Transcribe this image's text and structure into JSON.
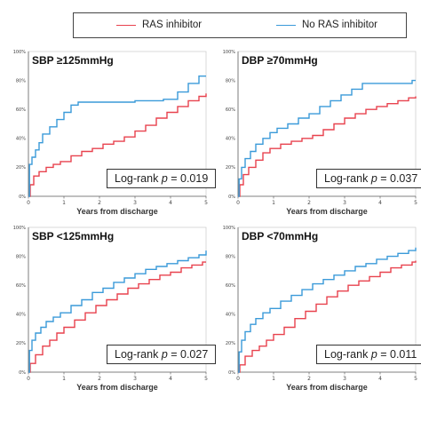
{
  "legend": {
    "items": [
      {
        "label": "RAS inhibitor",
        "color": "#e8424e"
      },
      {
        "label": "No RAS inhibitor",
        "color": "#3a9ad9"
      }
    ]
  },
  "chart_data": [
    {
      "type": "line",
      "title": "SBP ≥125mmHg",
      "xlabel": "Years from discharge",
      "ylabel": "",
      "xlim": [
        0,
        5
      ],
      "ylim": [
        0,
        100
      ],
      "xticks": [
        "0",
        "1",
        "2",
        "3",
        "4",
        "5"
      ],
      "yticks": [
        "0%",
        "20%",
        "40%",
        "60%",
        "80%",
        "100%"
      ],
      "annotation": {
        "prefix": "Log-rank ",
        "italic": "p",
        "suffix": " = 0.019"
      },
      "series": [
        {
          "name": "RAS inhibitor",
          "color": "#e8424e",
          "x": [
            0,
            0.05,
            0.15,
            0.3,
            0.5,
            0.7,
            0.9,
            1.2,
            1.5,
            1.8,
            2.1,
            2.4,
            2.7,
            3.0,
            3.3,
            3.6,
            3.9,
            4.2,
            4.5,
            4.8,
            5.0
          ],
          "y": [
            0,
            8,
            14,
            17,
            20,
            22,
            24,
            28,
            31,
            33,
            36,
            38,
            41,
            45,
            49,
            54,
            58,
            62,
            66,
            69,
            71
          ]
        },
        {
          "name": "No RAS inhibitor",
          "color": "#3a9ad9",
          "x": [
            0,
            0.03,
            0.1,
            0.2,
            0.3,
            0.4,
            0.6,
            0.8,
            1.0,
            1.2,
            1.4,
            2.0,
            3.0,
            3.8,
            4.2,
            4.5,
            4.8,
            5.0
          ],
          "y": [
            0,
            22,
            27,
            32,
            37,
            43,
            48,
            53,
            58,
            63,
            65,
            65,
            66,
            67,
            72,
            78,
            83,
            83
          ]
        }
      ]
    },
    {
      "type": "line",
      "title": "DBP ≥70mmHg",
      "xlabel": "Years from discharge",
      "ylabel": "",
      "xlim": [
        0,
        5
      ],
      "ylim": [
        0,
        100
      ],
      "xticks": [
        "0",
        "1",
        "2",
        "3",
        "4",
        "5"
      ],
      "yticks": [
        "0%",
        "20%",
        "40%",
        "60%",
        "80%",
        "100%"
      ],
      "annotation": {
        "prefix": "Log-rank ",
        "italic": "p",
        "suffix": " = 0.037"
      },
      "series": [
        {
          "name": "RAS inhibitor",
          "color": "#e8424e",
          "x": [
            0,
            0.05,
            0.15,
            0.3,
            0.5,
            0.7,
            0.9,
            1.2,
            1.5,
            1.8,
            2.1,
            2.4,
            2.7,
            3.0,
            3.3,
            3.6,
            3.9,
            4.2,
            4.5,
            4.8,
            5.0
          ],
          "y": [
            0,
            8,
            15,
            20,
            25,
            30,
            33,
            36,
            38,
            40,
            42,
            46,
            50,
            54,
            57,
            60,
            62,
            64,
            66,
            68,
            69
          ]
        },
        {
          "name": "No RAS inhibitor",
          "color": "#3a9ad9",
          "x": [
            0,
            0.03,
            0.1,
            0.2,
            0.35,
            0.5,
            0.7,
            0.9,
            1.1,
            1.4,
            1.7,
            2.0,
            2.3,
            2.6,
            2.9,
            3.2,
            3.5,
            3.9,
            4.3,
            4.7,
            4.9,
            5.0
          ],
          "y": [
            0,
            12,
            20,
            26,
            31,
            36,
            40,
            44,
            47,
            50,
            54,
            57,
            62,
            66,
            70,
            74,
            78,
            78,
            78,
            78,
            80,
            80
          ]
        }
      ]
    },
    {
      "type": "line",
      "title": "SBP <125mmHg",
      "xlabel": "Years from discharge",
      "ylabel": "",
      "xlim": [
        0,
        5
      ],
      "ylim": [
        0,
        100
      ],
      "xticks": [
        "0",
        "1",
        "2",
        "3",
        "4",
        "5"
      ],
      "yticks": [
        "0%",
        "20%",
        "40%",
        "60%",
        "80%",
        "100%"
      ],
      "annotation": {
        "prefix": "Log-rank ",
        "italic": "p",
        "suffix": " = 0.027"
      },
      "series": [
        {
          "name": "RAS inhibitor",
          "color": "#e8424e",
          "x": [
            0,
            0.05,
            0.2,
            0.4,
            0.6,
            0.8,
            1.0,
            1.3,
            1.6,
            1.9,
            2.2,
            2.5,
            2.8,
            3.1,
            3.4,
            3.7,
            4.0,
            4.3,
            4.6,
            4.9,
            5.0
          ],
          "y": [
            0,
            6,
            12,
            18,
            22,
            27,
            31,
            36,
            41,
            46,
            50,
            54,
            58,
            61,
            64,
            67,
            69,
            72,
            74,
            76,
            76
          ]
        },
        {
          "name": "No RAS inhibitor",
          "color": "#3a9ad9",
          "x": [
            0,
            0.03,
            0.1,
            0.2,
            0.35,
            0.5,
            0.7,
            0.9,
            1.2,
            1.5,
            1.8,
            2.1,
            2.4,
            2.7,
            3.0,
            3.3,
            3.6,
            3.9,
            4.2,
            4.5,
            4.8,
            5.0
          ],
          "y": [
            0,
            15,
            22,
            27,
            31,
            35,
            38,
            41,
            46,
            50,
            55,
            58,
            62,
            65,
            68,
            71,
            73,
            75,
            77,
            79,
            81,
            84
          ]
        }
      ]
    },
    {
      "type": "line",
      "title": "DBP <70mmHg",
      "xlabel": "Years from discharge",
      "ylabel": "",
      "xlim": [
        0,
        5
      ],
      "ylim": [
        0,
        100
      ],
      "xticks": [
        "0",
        "1",
        "2",
        "3",
        "4",
        "5"
      ],
      "yticks": [
        "0%",
        "20%",
        "40%",
        "60%",
        "80%",
        "100%"
      ],
      "annotation": {
        "prefix": "Log-rank ",
        "italic": "p",
        "suffix": " = 0.011"
      },
      "series": [
        {
          "name": "RAS inhibitor",
          "color": "#e8424e",
          "x": [
            0,
            0.05,
            0.2,
            0.4,
            0.6,
            0.8,
            1.0,
            1.3,
            1.6,
            1.9,
            2.2,
            2.5,
            2.8,
            3.1,
            3.4,
            3.7,
            4.0,
            4.3,
            4.6,
            4.9,
            5.0
          ],
          "y": [
            0,
            5,
            11,
            15,
            18,
            22,
            26,
            31,
            37,
            42,
            47,
            52,
            56,
            60,
            63,
            66,
            69,
            72,
            74,
            76,
            77
          ]
        },
        {
          "name": "No RAS inhibitor",
          "color": "#3a9ad9",
          "x": [
            0,
            0.03,
            0.1,
            0.2,
            0.35,
            0.5,
            0.7,
            0.9,
            1.2,
            1.5,
            1.8,
            2.1,
            2.4,
            2.7,
            3.0,
            3.3,
            3.6,
            3.9,
            4.2,
            4.5,
            4.8,
            5.0
          ],
          "y": [
            0,
            14,
            22,
            28,
            33,
            37,
            41,
            44,
            49,
            53,
            57,
            61,
            64,
            67,
            70,
            73,
            75,
            78,
            80,
            82,
            84,
            86
          ]
        }
      ]
    }
  ]
}
